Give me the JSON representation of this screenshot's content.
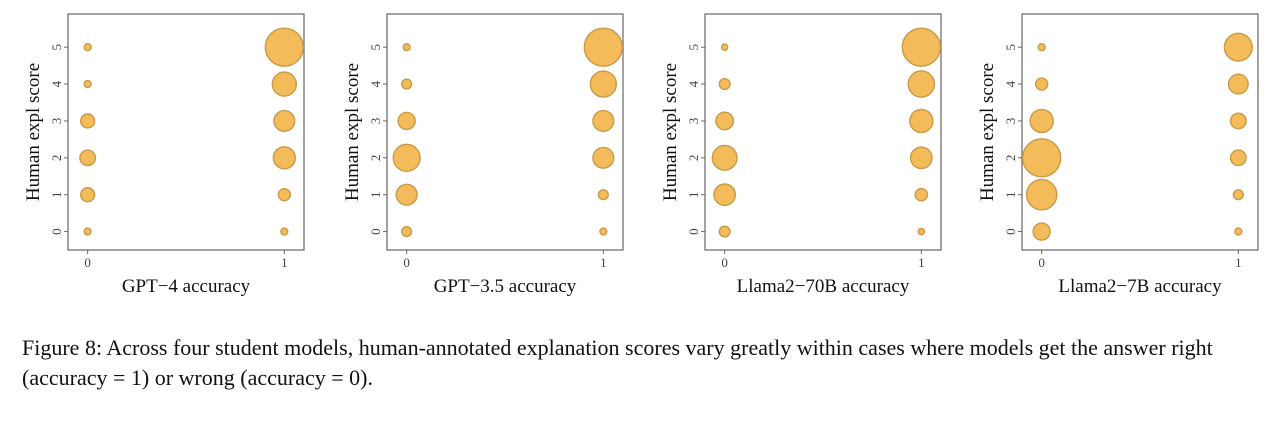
{
  "chart_data": [
    {
      "type": "scatter",
      "title": "",
      "xlabel": "GPT−4 accuracy",
      "ylabel": "Human expl score",
      "x_ticks": [
        "0",
        "1"
      ],
      "y_ticks": [
        "0",
        "1",
        "2",
        "3",
        "4",
        "5"
      ],
      "xlim": [
        -0.1,
        1.1
      ],
      "ylim": [
        -0.5,
        5.9
      ],
      "grid": false,
      "points": [
        {
          "x": 0,
          "y": 5,
          "size": 1
        },
        {
          "x": 0,
          "y": 4,
          "size": 1
        },
        {
          "x": 0,
          "y": 3,
          "size": 4
        },
        {
          "x": 0,
          "y": 2,
          "size": 5
        },
        {
          "x": 0,
          "y": 1,
          "size": 4
        },
        {
          "x": 0,
          "y": 0,
          "size": 1
        },
        {
          "x": 1,
          "y": 5,
          "size": 30
        },
        {
          "x": 1,
          "y": 4,
          "size": 12
        },
        {
          "x": 1,
          "y": 3,
          "size": 9
        },
        {
          "x": 1,
          "y": 2,
          "size": 10
        },
        {
          "x": 1,
          "y": 1,
          "size": 3
        },
        {
          "x": 1,
          "y": 0,
          "size": 1
        }
      ]
    },
    {
      "type": "scatter",
      "title": "",
      "xlabel": "GPT−3.5 accuracy",
      "ylabel": "Human expl score",
      "x_ticks": [
        "0",
        "1"
      ],
      "y_ticks": [
        "0",
        "1",
        "2",
        "3",
        "4",
        "5"
      ],
      "xlim": [
        -0.1,
        1.1
      ],
      "ylim": [
        -0.5,
        5.9
      ],
      "grid": false,
      "points": [
        {
          "x": 0,
          "y": 5,
          "size": 1
        },
        {
          "x": 0,
          "y": 4,
          "size": 2
        },
        {
          "x": 0,
          "y": 3,
          "size": 6
        },
        {
          "x": 0,
          "y": 2,
          "size": 15
        },
        {
          "x": 0,
          "y": 1,
          "size": 9
        },
        {
          "x": 0,
          "y": 0,
          "size": 2
        },
        {
          "x": 1,
          "y": 5,
          "size": 30
        },
        {
          "x": 1,
          "y": 4,
          "size": 14
        },
        {
          "x": 1,
          "y": 3,
          "size": 9
        },
        {
          "x": 1,
          "y": 2,
          "size": 9
        },
        {
          "x": 1,
          "y": 1,
          "size": 2
        },
        {
          "x": 1,
          "y": 0,
          "size": 1
        }
      ]
    },
    {
      "type": "scatter",
      "title": "",
      "xlabel": "Llama2−70B accuracy",
      "ylabel": "Human expl score",
      "x_ticks": [
        "0",
        "1"
      ],
      "y_ticks": [
        "0",
        "1",
        "2",
        "3",
        "4",
        "5"
      ],
      "xlim": [
        -0.1,
        1.1
      ],
      "ylim": [
        -0.5,
        5.9
      ],
      "grid": false,
      "points": [
        {
          "x": 0,
          "y": 5,
          "size": 1
        },
        {
          "x": 0,
          "y": 4,
          "size": 3
        },
        {
          "x": 0,
          "y": 3,
          "size": 8
        },
        {
          "x": 0,
          "y": 2,
          "size": 16
        },
        {
          "x": 0,
          "y": 1,
          "size": 12
        },
        {
          "x": 0,
          "y": 0,
          "size": 3
        },
        {
          "x": 1,
          "y": 5,
          "size": 38
        },
        {
          "x": 1,
          "y": 4,
          "size": 18
        },
        {
          "x": 1,
          "y": 3,
          "size": 14
        },
        {
          "x": 1,
          "y": 2,
          "size": 12
        },
        {
          "x": 1,
          "y": 1,
          "size": 4
        },
        {
          "x": 1,
          "y": 0,
          "size": 1
        }
      ]
    },
    {
      "type": "scatter",
      "title": "",
      "xlabel": "Llama2−7B accuracy",
      "ylabel": "Human expl score",
      "x_ticks": [
        "0",
        "1"
      ],
      "y_ticks": [
        "0",
        "1",
        "2",
        "3",
        "4",
        "5"
      ],
      "xlim": [
        -0.1,
        1.1
      ],
      "ylim": [
        -0.5,
        5.9
      ],
      "grid": false,
      "points": [
        {
          "x": 0,
          "y": 5,
          "size": 1
        },
        {
          "x": 0,
          "y": 4,
          "size": 3
        },
        {
          "x": 0,
          "y": 3,
          "size": 11
        },
        {
          "x": 0,
          "y": 2,
          "size": 30
        },
        {
          "x": 0,
          "y": 1,
          "size": 19
        },
        {
          "x": 0,
          "y": 0,
          "size": 6
        },
        {
          "x": 1,
          "y": 5,
          "size": 16
        },
        {
          "x": 1,
          "y": 4,
          "size": 8
        },
        {
          "x": 1,
          "y": 3,
          "size": 5
        },
        {
          "x": 1,
          "y": 2,
          "size": 5
        },
        {
          "x": 1,
          "y": 1,
          "size": 2
        },
        {
          "x": 1,
          "y": 0,
          "size": 1
        }
      ]
    }
  ],
  "style": {
    "marker_fill": "#f3bb59",
    "marker_stroke": "#c99a47",
    "axis_color": "#666666"
  },
  "caption": "Figure 8: Across four student models, human-annotated explanation scores vary greatly within cases where models get the answer right (accuracy = 1) or wrong (accuracy = 0)."
}
